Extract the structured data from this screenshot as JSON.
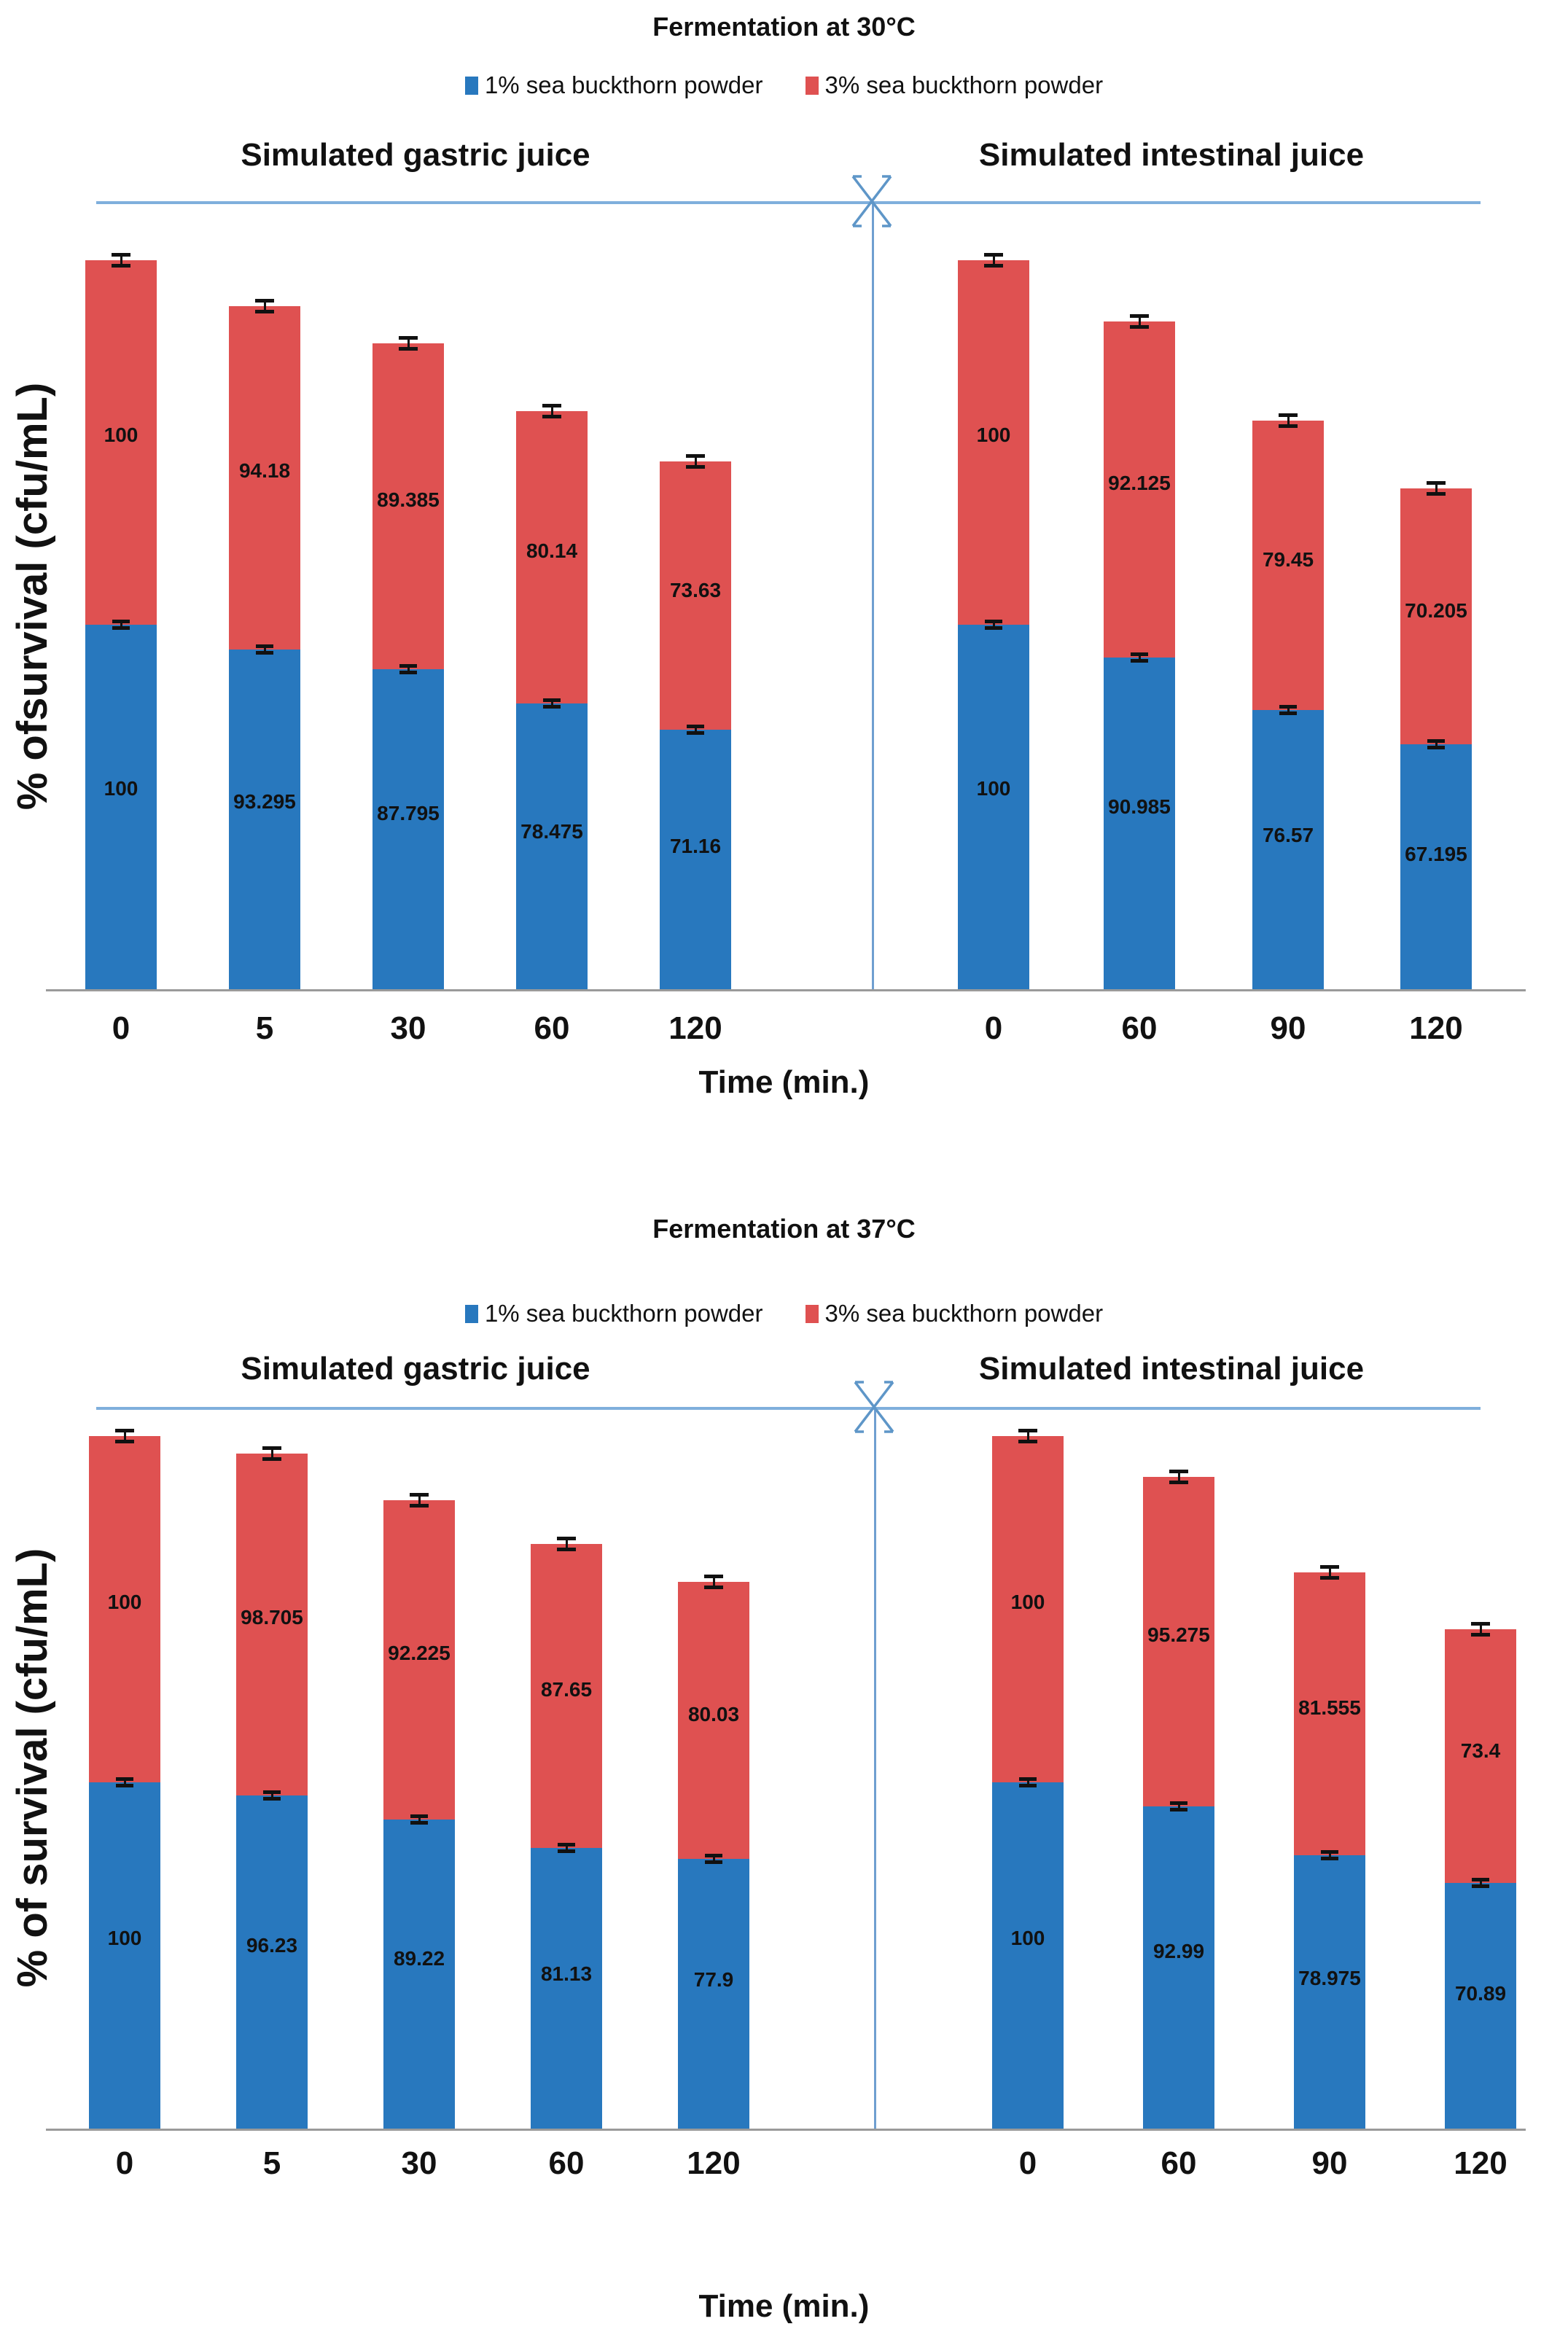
{
  "colors": {
    "series_1pct": "#2878BE",
    "series_3pct": "#DF5151",
    "panel_line": "#7FAFDC",
    "divider_line": "#6F9FD0",
    "baseline": "#9A9A9A",
    "error_bar": "#111111"
  },
  "chart_data": [
    {
      "type": "bar",
      "stacked": true,
      "title": "Fermentation at 30°C",
      "ylabel": "% ofsurvival (cfu/mL)",
      "xlabel": "Time (min.)",
      "legend": [
        "1% sea buckthorn powder",
        "3% sea buckthorn powder"
      ],
      "error_bars": true,
      "grid": false,
      "panels": [
        {
          "header": "Simulated gastric juice",
          "categories": [
            "0",
            "5",
            "30",
            "60",
            "120"
          ],
          "series": [
            {
              "name": "1% sea buckthorn powder",
              "values": [
                100,
                93.295,
                87.795,
                78.475,
                71.16
              ]
            },
            {
              "name": "3% sea buckthorn powder",
              "values": [
                100,
                94.18,
                89.385,
                80.14,
                73.63
              ]
            }
          ]
        },
        {
          "header": "Simulated intestinal juice",
          "categories": [
            "0",
            "60",
            "90",
            "120"
          ],
          "series": [
            {
              "name": "1% sea buckthorn powder",
              "values": [
                100,
                90.985,
                76.57,
                67.195
              ]
            },
            {
              "name": "3% sea buckthorn powder",
              "values": [
                100,
                92.125,
                79.45,
                70.205
              ]
            }
          ]
        }
      ]
    },
    {
      "type": "bar",
      "stacked": true,
      "title": "Fermentation at 37°C",
      "ylabel": "% of survival (cfu/mL)",
      "xlabel": "Time (min.)",
      "legend": [
        "1% sea buckthorn powder",
        "3% sea buckthorn powder"
      ],
      "error_bars": true,
      "grid": false,
      "panels": [
        {
          "header": "Simulated gastric juice",
          "categories": [
            "0",
            "5",
            "30",
            "60",
            "120"
          ],
          "series": [
            {
              "name": "1% sea buckthorn powder",
              "values": [
                100,
                96.23,
                89.22,
                81.13,
                77.9
              ]
            },
            {
              "name": "3% sea buckthorn powder",
              "values": [
                100,
                98.705,
                92.225,
                87.65,
                80.03
              ]
            }
          ]
        },
        {
          "header": "Simulated intestinal juice",
          "categories": [
            "0",
            "60",
            "90",
            "120"
          ],
          "series": [
            {
              "name": "1% sea buckthorn powder",
              "values": [
                100,
                92.99,
                78.975,
                70.89
              ]
            },
            {
              "name": "3% sea buckthorn powder",
              "values": [
                100,
                95.275,
                81.555,
                73.4
              ]
            }
          ]
        }
      ]
    }
  ]
}
